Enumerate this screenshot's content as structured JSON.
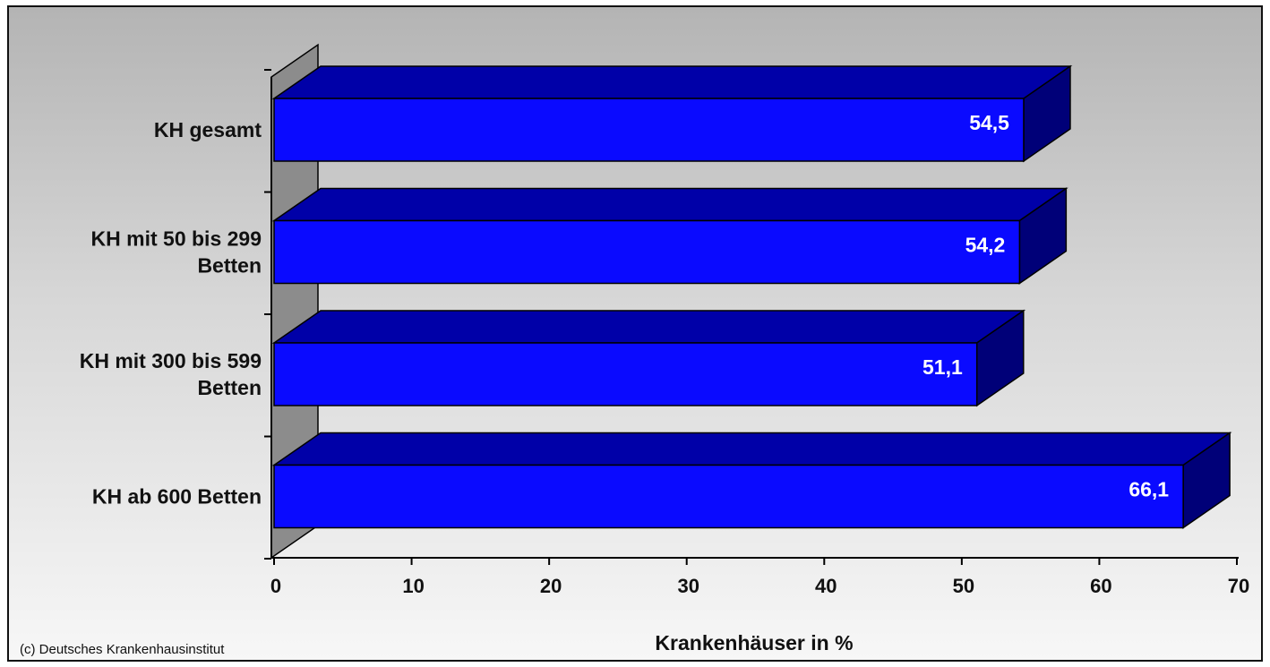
{
  "chart_data": {
    "type": "bar",
    "orientation": "horizontal",
    "three_d": true,
    "categories": [
      [
        "KH gesamt"
      ],
      [
        "KH mit 50 bis 299",
        "Betten"
      ],
      [
        "KH mit 300 bis 599",
        "Betten"
      ],
      [
        "KH ab 600 Betten"
      ]
    ],
    "values": [
      54.5,
      54.2,
      51.1,
      66.1
    ],
    "value_labels": [
      "54,5",
      "54,2",
      "51,1",
      "66,1"
    ],
    "xlabel": "Krankenhäuser in %",
    "xlim": [
      0,
      70
    ],
    "xticks": [
      0,
      10,
      20,
      30,
      40,
      50,
      60,
      70
    ],
    "xtick_labels": [
      "0",
      "10",
      "20",
      "30",
      "40",
      "50",
      "60",
      "70"
    ],
    "grid": false,
    "legend": "none"
  },
  "footer": {
    "copyright": "(c) Deutsches Krankenhausinstitut"
  },
  "colors": {
    "bar_front": "#0a0aff",
    "bar_top": "#0000a8",
    "bar_side": "#000078",
    "wall": "#8c8c8c",
    "value_label": "#ffffff"
  }
}
